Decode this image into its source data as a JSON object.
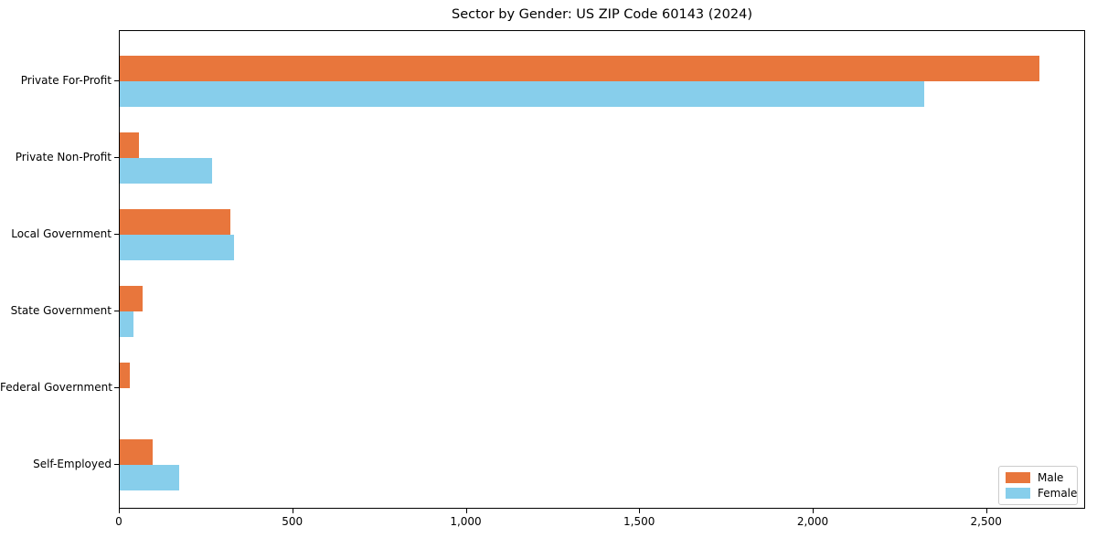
{
  "title": "Sector by Gender: US ZIP Code 60143 (2024)",
  "colors": {
    "male": "#e8763c",
    "female": "#87ceeb",
    "axis": "#000000",
    "legend_border": "#cccccc",
    "background": "#ffffff"
  },
  "chart_data": {
    "type": "bar",
    "orientation": "horizontal",
    "title": "Sector by Gender: US ZIP Code 60143 (2024)",
    "xlabel": "",
    "ylabel": "",
    "categories": [
      "Private For-Profit",
      "Private Non-Profit",
      "Local Government",
      "State Government",
      "Federal Government",
      "Self-Employed"
    ],
    "series": [
      {
        "name": "Male",
        "color": "#e8763c",
        "values": [
          2650,
          55,
          320,
          65,
          30,
          95
        ]
      },
      {
        "name": "Female",
        "color": "#87ceeb",
        "values": [
          2320,
          265,
          330,
          40,
          0,
          170
        ]
      }
    ],
    "xlim": [
      0,
      2780
    ],
    "xticks": [
      0,
      500,
      1000,
      1500,
      2000,
      2500
    ],
    "xtick_labels": [
      "0",
      "500",
      "1,000",
      "1,500",
      "2,000",
      "2,500"
    ],
    "grid": false,
    "legend_position": "lower right"
  },
  "legend": {
    "items": [
      {
        "label": "Male"
      },
      {
        "label": "Female"
      }
    ]
  }
}
